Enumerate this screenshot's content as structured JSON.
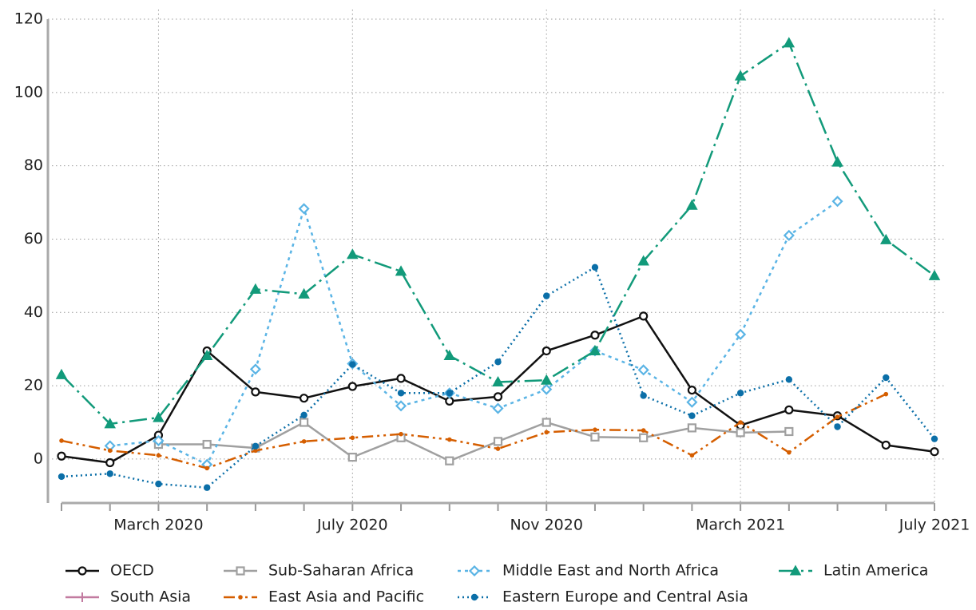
{
  "chart_data": {
    "type": "line",
    "categories": [
      null,
      null,
      "March 2020",
      null,
      null,
      null,
      "July 2020",
      null,
      null,
      null,
      "Nov 2020",
      null,
      null,
      null,
      "March 2021",
      null,
      null,
      null,
      "July 2021"
    ],
    "ylim": [
      -12,
      120
    ],
    "yticks": [
      0,
      20,
      40,
      60,
      80,
      100,
      120
    ],
    "grid": true,
    "legend": "bottom",
    "series": [
      {
        "name": "OECD",
        "color": "#111111",
        "marker": "circle",
        "dash": "solid",
        "values": [
          0.8,
          -1,
          6.5,
          29.5,
          18.3,
          16.6,
          19.8,
          22,
          15.8,
          17,
          29.5,
          33.8,
          39,
          18.8,
          9.2,
          13.4,
          11.8,
          3.8,
          2
        ]
      },
      {
        "name": "Sub-Saharan Africa",
        "color": "#a0a0a0",
        "marker": "square",
        "dash": "solid",
        "values": [
          null,
          null,
          4,
          4,
          3,
          10,
          0.5,
          5.8,
          -0.5,
          4.8,
          10,
          6,
          5.8,
          8.5,
          7.2,
          7.5,
          null,
          null,
          null
        ]
      },
      {
        "name": "Middle East and North Africa",
        "color": "#5ab4e5",
        "marker": "diamond",
        "dash": "short",
        "values": [
          null,
          3.6,
          5,
          -1.5,
          24.5,
          68.3,
          26,
          14.5,
          18,
          13.8,
          19,
          29.5,
          24.3,
          15.5,
          34,
          61,
          70.3,
          null,
          null
        ]
      },
      {
        "name": "Latin America",
        "color": "#129a7a",
        "marker": "triangle",
        "dash": "dashdot",
        "values": [
          23,
          9.6,
          11.3,
          28.2,
          46.3,
          45,
          55.8,
          51.2,
          28.2,
          21,
          21.5,
          29.5,
          54,
          69.2,
          104.5,
          113.5,
          81,
          59.8,
          50
        ]
      },
      {
        "name": "South Asia",
        "color": "#c27ba0",
        "marker": "plus",
        "dash": "solid",
        "values": [
          null,
          null,
          null,
          null,
          null,
          null,
          null,
          null,
          null,
          null,
          null,
          null,
          null,
          null,
          null,
          null,
          null,
          null,
          null
        ]
      },
      {
        "name": "East Asia and Pacific",
        "color": "#d55e00",
        "marker": "smalldot",
        "dash": "dashdotdot",
        "values": [
          5,
          2.3,
          1,
          -2.5,
          2.3,
          4.8,
          5.8,
          6.8,
          5.3,
          2.8,
          7.3,
          8,
          7.8,
          1,
          10,
          1.8,
          11.5,
          17.7,
          null
        ]
      },
      {
        "name": "Eastern Europe and Central Asia",
        "color": "#0b6fa8",
        "marker": "dot",
        "dash": "dotted",
        "values": [
          -4.8,
          -4,
          -6.8,
          -7.8,
          3.5,
          12,
          25.8,
          18,
          18,
          26.5,
          44.5,
          52.3,
          17.3,
          11.8,
          18,
          21.7,
          8.8,
          22.2,
          5.5
        ]
      }
    ]
  }
}
